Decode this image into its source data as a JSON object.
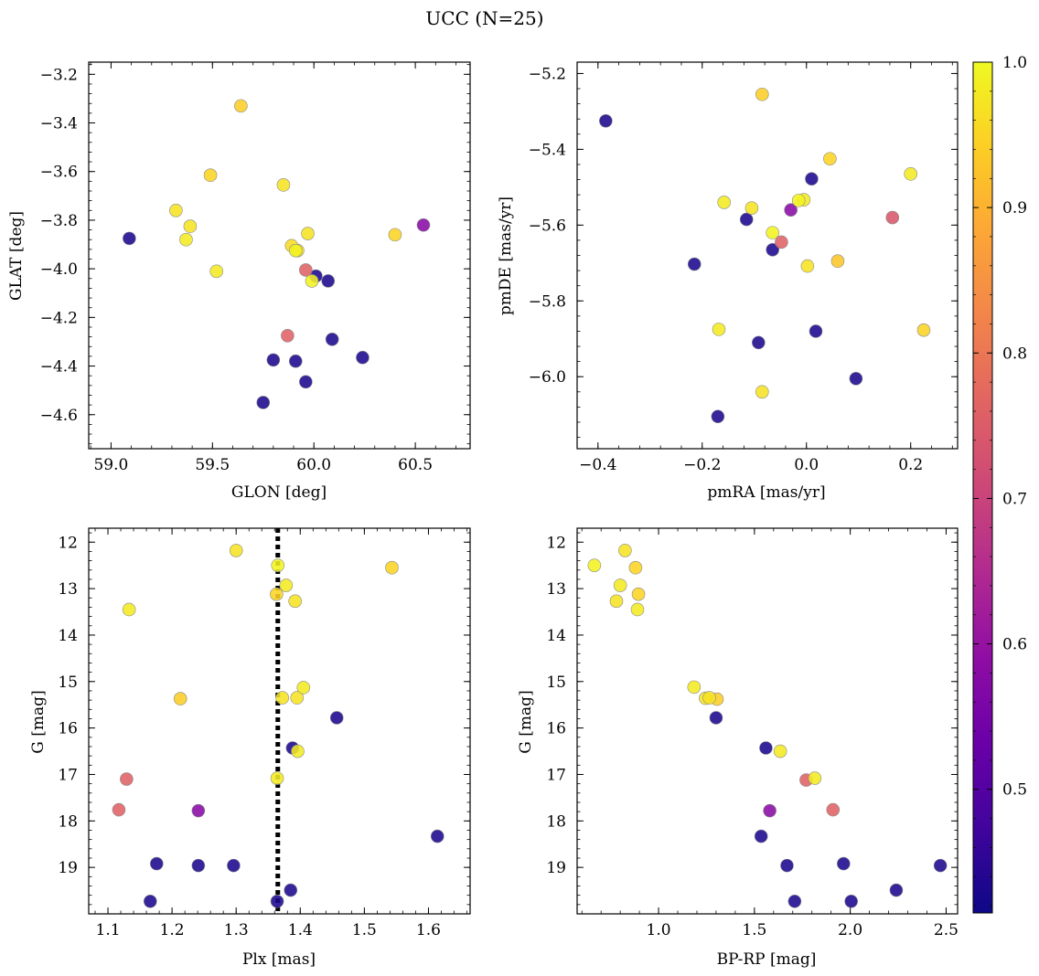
{
  "title": "UCC (N=25)",
  "colorbar": {
    "colormap": "plasma",
    "range": [
      0.415,
      1.0
    ],
    "ticks": [
      0.5,
      0.6,
      0.7,
      0.8,
      0.9,
      1.0
    ],
    "tick_labels": [
      "0.5",
      "0.6",
      "0.7",
      "0.8",
      "0.9",
      "1.0"
    ]
  },
  "chart_data": [
    {
      "type": "scatter",
      "id": "glon-glat",
      "xlabel": "GLON [deg]",
      "ylabel": "GLAT [deg]",
      "xlim": [
        58.89,
        60.77
      ],
      "ylim": [
        -4.74,
        -3.15
      ],
      "y_inverted": false,
      "xticks": [
        59.0,
        59.5,
        60.0,
        60.5
      ],
      "xtick_labels": [
        "59.0",
        "59.5",
        "60.0",
        "60.5"
      ],
      "yticks": [
        -3.2,
        -3.4,
        -3.6,
        -3.8,
        -4.0,
        -4.2,
        -4.4,
        -4.6
      ],
      "ytick_labels": [
        "−3.2",
        "−3.4",
        "−3.6",
        "−3.8",
        "−4.0",
        "−4.2",
        "−4.4",
        "−4.6"
      ],
      "points": [
        {
          "x": 59.09,
          "y": -3.875,
          "c": 0.43
        },
        {
          "x": 59.64,
          "y": -3.33,
          "c": 0.94
        },
        {
          "x": 59.49,
          "y": -3.615,
          "c": 0.95
        },
        {
          "x": 59.32,
          "y": -3.76,
          "c": 0.97
        },
        {
          "x": 59.39,
          "y": -3.825,
          "c": 0.97
        },
        {
          "x": 59.37,
          "y": -3.88,
          "c": 0.98
        },
        {
          "x": 59.52,
          "y": -4.01,
          "c": 0.98
        },
        {
          "x": 59.85,
          "y": -3.655,
          "c": 0.97
        },
        {
          "x": 59.89,
          "y": -3.905,
          "c": 0.96
        },
        {
          "x": 59.91,
          "y": -3.925,
          "c": 0.99
        },
        {
          "x": 59.92,
          "y": -3.925,
          "c": 0.97
        },
        {
          "x": 59.97,
          "y": -3.855,
          "c": 0.97
        },
        {
          "x": 60.54,
          "y": -3.82,
          "c": 0.58
        },
        {
          "x": 60.4,
          "y": -3.86,
          "c": 0.95
        },
        {
          "x": 59.96,
          "y": -4.005,
          "c": 0.76
        },
        {
          "x": 60.01,
          "y": -4.03,
          "c": 0.43
        },
        {
          "x": 60.07,
          "y": -4.05,
          "c": 0.43
        },
        {
          "x": 59.99,
          "y": -4.05,
          "c": 0.99
        },
        {
          "x": 59.87,
          "y": -4.275,
          "c": 0.76
        },
        {
          "x": 60.09,
          "y": -4.29,
          "c": 0.43
        },
        {
          "x": 59.8,
          "y": -4.375,
          "c": 0.43
        },
        {
          "x": 59.91,
          "y": -4.38,
          "c": 0.43
        },
        {
          "x": 60.24,
          "y": -4.365,
          "c": 0.43
        },
        {
          "x": 59.96,
          "y": -4.465,
          "c": 0.43
        },
        {
          "x": 59.75,
          "y": -4.55,
          "c": 0.43
        }
      ]
    },
    {
      "type": "scatter",
      "id": "pmra-pmde",
      "xlabel": "pmRA [mas/yr]",
      "ylabel": "pmDE [mas/yr]",
      "xlim": [
        -0.44,
        0.29
      ],
      "ylim": [
        -6.19,
        -5.17
      ],
      "y_inverted": false,
      "xticks": [
        -0.4,
        -0.2,
        0.0,
        0.2
      ],
      "xtick_labels": [
        "−0.4",
        "−0.2",
        "0.0",
        "0.2"
      ],
      "yticks": [
        -5.2,
        -5.4,
        -5.6,
        -5.8,
        -6.0
      ],
      "ytick_labels": [
        "−5.2",
        "−5.4",
        "−5.6",
        "−5.8",
        "−6.0"
      ],
      "points": [
        {
          "x": -0.385,
          "y": -5.325,
          "c": 0.43
        },
        {
          "x": -0.085,
          "y": -5.255,
          "c": 0.94
        },
        {
          "x": 0.045,
          "y": -5.425,
          "c": 0.95
        },
        {
          "x": 0.2,
          "y": -5.465,
          "c": 0.98
        },
        {
          "x": 0.01,
          "y": -5.478,
          "c": 0.43
        },
        {
          "x": -0.158,
          "y": -5.54,
          "c": 0.98
        },
        {
          "x": -0.105,
          "y": -5.555,
          "c": 0.97
        },
        {
          "x": -0.115,
          "y": -5.585,
          "c": 0.43
        },
        {
          "x": -0.03,
          "y": -5.56,
          "c": 0.58
        },
        {
          "x": -0.015,
          "y": -5.535,
          "c": 0.99
        },
        {
          "x": -0.005,
          "y": -5.533,
          "c": 0.98
        },
        {
          "x": 0.165,
          "y": -5.58,
          "c": 0.74
        },
        {
          "x": -0.065,
          "y": -5.62,
          "c": 0.99
        },
        {
          "x": -0.048,
          "y": -5.645,
          "c": 0.76
        },
        {
          "x": -0.065,
          "y": -5.665,
          "c": 0.43
        },
        {
          "x": 0.06,
          "y": -5.695,
          "c": 0.93
        },
        {
          "x": 0.002,
          "y": -5.708,
          "c": 0.97
        },
        {
          "x": -0.215,
          "y": -5.703,
          "c": 0.43
        },
        {
          "x": -0.168,
          "y": -5.875,
          "c": 0.98
        },
        {
          "x": 0.225,
          "y": -5.877,
          "c": 0.95
        },
        {
          "x": 0.018,
          "y": -5.88,
          "c": 0.43
        },
        {
          "x": -0.092,
          "y": -5.91,
          "c": 0.43
        },
        {
          "x": 0.095,
          "y": -6.005,
          "c": 0.43
        },
        {
          "x": -0.085,
          "y": -6.04,
          "c": 0.97
        },
        {
          "x": -0.17,
          "y": -6.105,
          "c": 0.43
        }
      ]
    },
    {
      "type": "scatter",
      "id": "plx-g",
      "xlabel": "Plx [mas]",
      "ylabel": "G [mag]",
      "xlim": [
        1.07,
        1.665
      ],
      "ylim": [
        11.7,
        20.0
      ],
      "y_inverted": true,
      "vline": {
        "x": 1.365,
        "style": "dotted"
      },
      "xticks": [
        1.1,
        1.2,
        1.3,
        1.4,
        1.5,
        1.6
      ],
      "xtick_labels": [
        "1.1",
        "1.2",
        "1.3",
        "1.4",
        "1.5",
        "1.6"
      ],
      "yticks": [
        12,
        13,
        14,
        15,
        16,
        17,
        18,
        19
      ],
      "ytick_labels": [
        "12",
        "13",
        "14",
        "15",
        "16",
        "17",
        "18",
        "19"
      ],
      "points": [
        {
          "x": 1.3,
          "y": 12.18,
          "c": 0.97
        },
        {
          "x": 1.365,
          "y": 12.5,
          "c": 0.99
        },
        {
          "x": 1.543,
          "y": 12.55,
          "c": 0.95
        },
        {
          "x": 1.378,
          "y": 12.93,
          "c": 0.98
        },
        {
          "x": 1.363,
          "y": 13.12,
          "c": 0.95
        },
        {
          "x": 1.392,
          "y": 13.27,
          "c": 0.97
        },
        {
          "x": 1.133,
          "y": 13.45,
          "c": 0.98
        },
        {
          "x": 1.405,
          "y": 15.13,
          "c": 0.98
        },
        {
          "x": 1.372,
          "y": 15.35,
          "c": 0.97
        },
        {
          "x": 1.395,
          "y": 15.35,
          "c": 0.97
        },
        {
          "x": 1.213,
          "y": 15.37,
          "c": 0.94
        },
        {
          "x": 1.457,
          "y": 15.78,
          "c": 0.43
        },
        {
          "x": 1.388,
          "y": 16.43,
          "c": 0.43
        },
        {
          "x": 1.396,
          "y": 16.5,
          "c": 0.98
        },
        {
          "x": 1.129,
          "y": 17.1,
          "c": 0.76
        },
        {
          "x": 1.364,
          "y": 17.08,
          "c": 0.98
        },
        {
          "x": 1.117,
          "y": 17.76,
          "c": 0.76
        },
        {
          "x": 1.241,
          "y": 17.78,
          "c": 0.58
        },
        {
          "x": 1.614,
          "y": 18.33,
          "c": 0.43
        },
        {
          "x": 1.176,
          "y": 18.92,
          "c": 0.43
        },
        {
          "x": 1.241,
          "y": 18.96,
          "c": 0.43
        },
        {
          "x": 1.296,
          "y": 18.96,
          "c": 0.43
        },
        {
          "x": 1.385,
          "y": 19.49,
          "c": 0.43
        },
        {
          "x": 1.166,
          "y": 19.73,
          "c": 0.43
        },
        {
          "x": 1.364,
          "y": 19.73,
          "c": 0.43
        }
      ]
    },
    {
      "type": "scatter",
      "id": "bprp-g",
      "xlabel": "BP-RP [mag]",
      "ylabel": "G [mag]",
      "xlim": [
        0.575,
        2.56
      ],
      "ylim": [
        11.7,
        20.0
      ],
      "y_inverted": true,
      "xticks": [
        1.0,
        1.5,
        2.0,
        2.5
      ],
      "xtick_labels": [
        "1.0",
        "1.5",
        "2.0",
        "2.5"
      ],
      "yticks": [
        12,
        13,
        14,
        15,
        16,
        17,
        18,
        19
      ],
      "ytick_labels": [
        "12",
        "13",
        "14",
        "15",
        "16",
        "17",
        "18",
        "19"
      ],
      "points": [
        {
          "x": 0.825,
          "y": 12.18,
          "c": 0.97
        },
        {
          "x": 0.665,
          "y": 12.5,
          "c": 0.99
        },
        {
          "x": 0.88,
          "y": 12.55,
          "c": 0.95
        },
        {
          "x": 0.8,
          "y": 12.93,
          "c": 0.98
        },
        {
          "x": 0.895,
          "y": 13.12,
          "c": 0.95
        },
        {
          "x": 0.78,
          "y": 13.27,
          "c": 0.97
        },
        {
          "x": 0.89,
          "y": 13.45,
          "c": 0.98
        },
        {
          "x": 1.185,
          "y": 15.12,
          "c": 0.98
        },
        {
          "x": 1.245,
          "y": 15.36,
          "c": 0.97
        },
        {
          "x": 1.265,
          "y": 15.35,
          "c": 0.97
        },
        {
          "x": 1.305,
          "y": 15.38,
          "c": 0.94
        },
        {
          "x": 1.3,
          "y": 15.78,
          "c": 0.43
        },
        {
          "x": 1.56,
          "y": 16.43,
          "c": 0.43
        },
        {
          "x": 1.635,
          "y": 16.5,
          "c": 0.98
        },
        {
          "x": 1.77,
          "y": 17.12,
          "c": 0.76
        },
        {
          "x": 1.815,
          "y": 17.08,
          "c": 0.98
        },
        {
          "x": 1.91,
          "y": 17.76,
          "c": 0.76
        },
        {
          "x": 1.58,
          "y": 17.78,
          "c": 0.58
        },
        {
          "x": 1.535,
          "y": 18.33,
          "c": 0.43
        },
        {
          "x": 1.965,
          "y": 18.92,
          "c": 0.43
        },
        {
          "x": 1.67,
          "y": 18.96,
          "c": 0.43
        },
        {
          "x": 2.47,
          "y": 18.96,
          "c": 0.43
        },
        {
          "x": 2.24,
          "y": 19.49,
          "c": 0.43
        },
        {
          "x": 1.71,
          "y": 19.73,
          "c": 0.43
        },
        {
          "x": 2.005,
          "y": 19.73,
          "c": 0.43
        }
      ]
    }
  ]
}
